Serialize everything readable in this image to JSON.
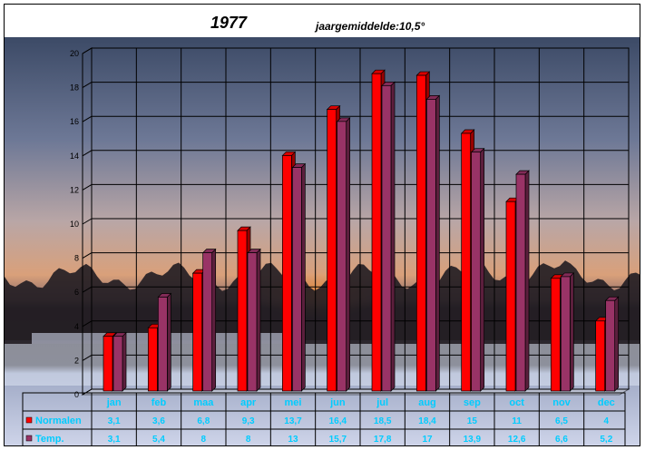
{
  "chart_data": {
    "type": "bar",
    "title": "1977",
    "subtitle": "jaargemiddelde:10,5°",
    "categories": [
      "jan",
      "feb",
      "maa",
      "apr",
      "mei",
      "jun",
      "jul",
      "aug",
      "sep",
      "oct",
      "nov",
      "dec"
    ],
    "series": [
      {
        "name": "Normalen",
        "color": "#ff0000",
        "values": [
          3.1,
          3.6,
          6.8,
          9.3,
          13.7,
          16.4,
          18.5,
          18.4,
          15,
          11,
          6.5,
          4
        ],
        "labels": [
          "3,1",
          "3,6",
          "6,8",
          "9,3",
          "13,7",
          "16,4",
          "18,5",
          "18,4",
          "15",
          "11",
          "6,5",
          "4"
        ]
      },
      {
        "name": "Temp.",
        "color": "#993366",
        "values": [
          3.1,
          5.4,
          8,
          8,
          13,
          15.7,
          17.8,
          17,
          13.9,
          12.6,
          6.6,
          5.2
        ],
        "labels": [
          "3,1",
          "5,4",
          "8",
          "8",
          "13",
          "15,7",
          "17,8",
          "17",
          "13,9",
          "12,6",
          "6,6",
          "5,2"
        ]
      }
    ],
    "ylim": [
      0,
      20
    ],
    "yticks": [
      0,
      2,
      4,
      6,
      8,
      10,
      12,
      14,
      16,
      18,
      20
    ],
    "grid": true,
    "legend": "data-table-left",
    "background": "sunset-photo"
  }
}
